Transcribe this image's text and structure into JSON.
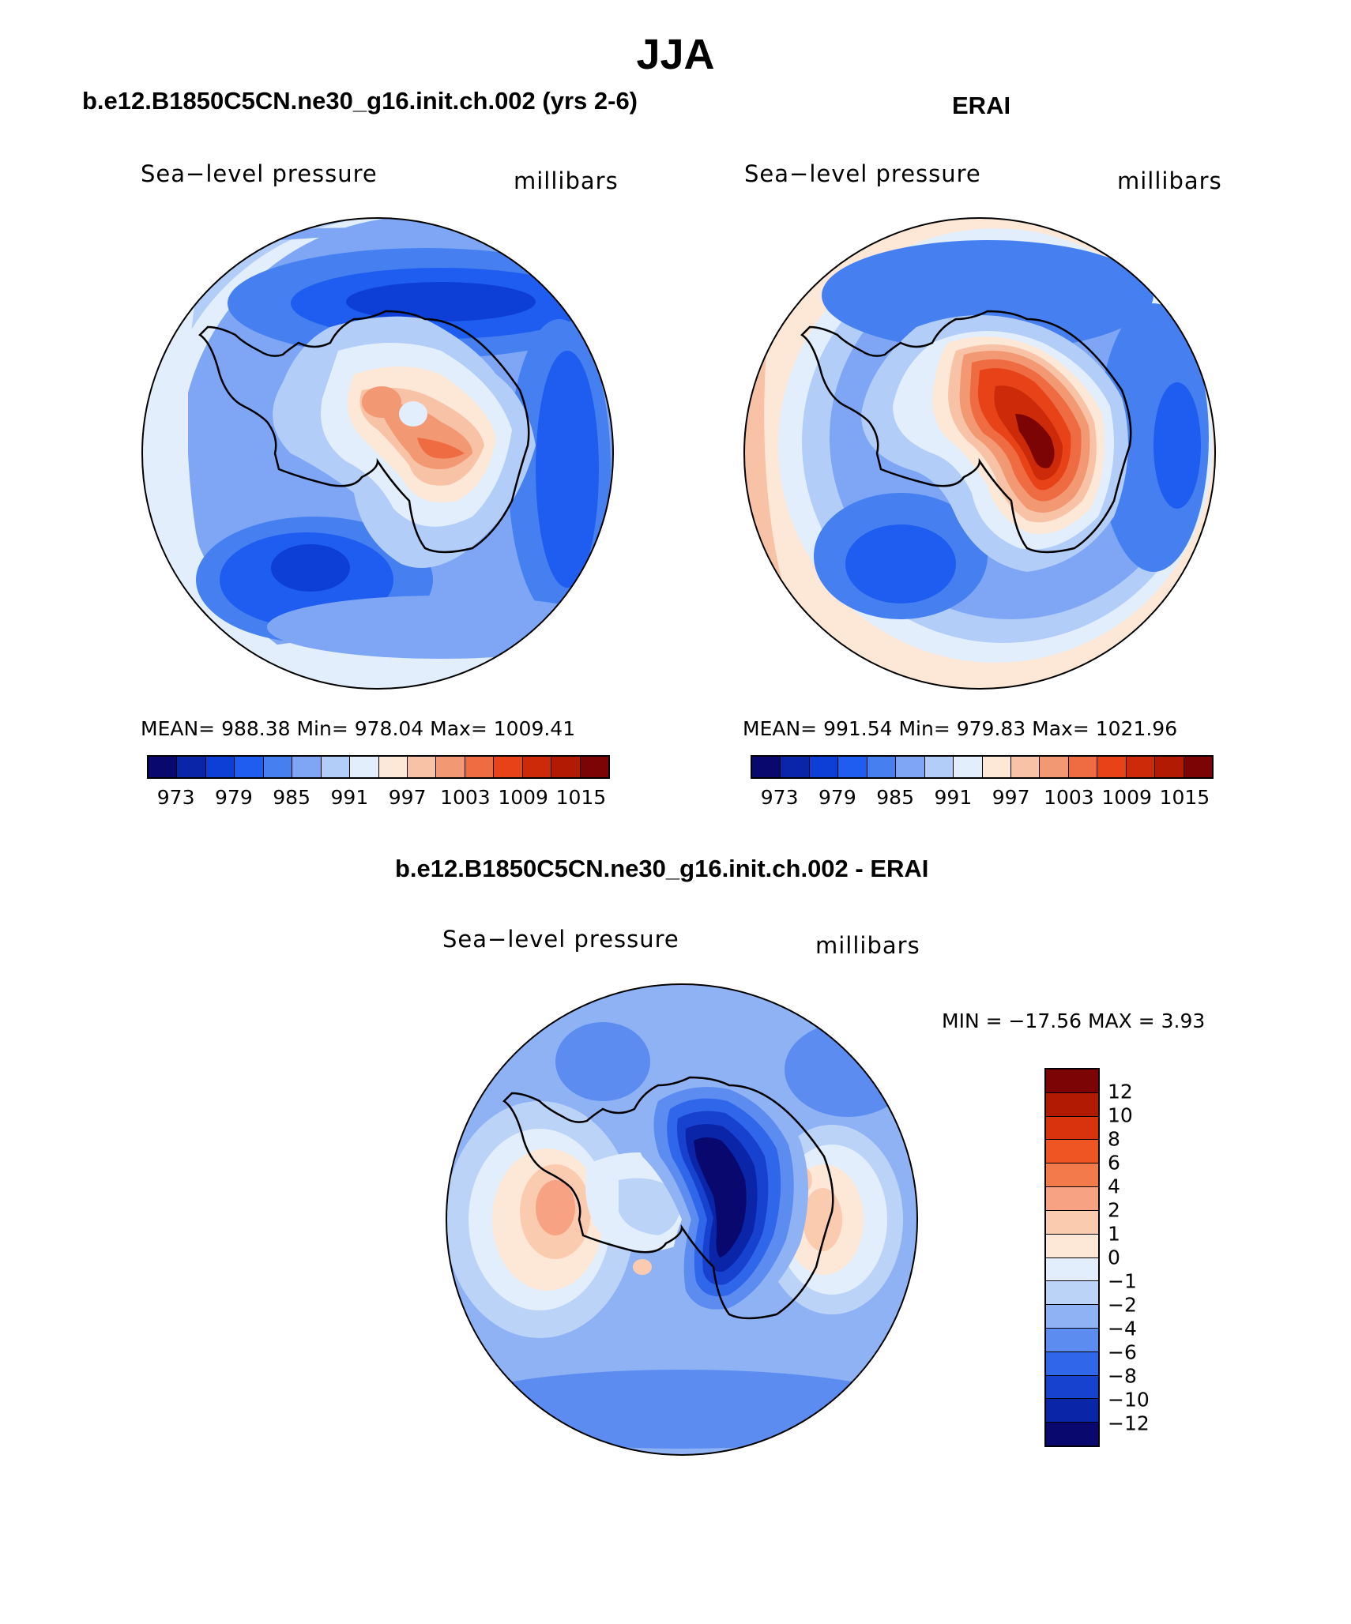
{
  "title": "JJA",
  "panels": [
    {
      "title": "b.e12.B1850C5CN.ne30_g16.init.ch.002 (yrs 2-6)",
      "left_label": "Sea−level pressure",
      "right_label": "millibars",
      "stats": "MEAN= 988.38   Min= 978.04   Max= 1009.41"
    },
    {
      "title": "ERAI",
      "left_label": "Sea−level pressure",
      "right_label": "millibars",
      "stats": "MEAN= 991.54   Min= 979.83   Max= 1021.96"
    },
    {
      "title": "b.e12.B1850C5CN.ne30_g16.init.ch.002 - ERAI",
      "left_label": "Sea−level pressure",
      "right_label": "millibars",
      "stats": "MIN = −17.56  MAX =    3.93"
    }
  ],
  "abs_colorbar": {
    "colors": [
      "#08086e",
      "#0a25a8",
      "#0d3fd6",
      "#1f5df0",
      "#4680f0",
      "#7ea6f5",
      "#b2cdf8",
      "#e2eefb",
      "#fde8d8",
      "#f8c2a6",
      "#f29873",
      "#ef6b42",
      "#e84318",
      "#cc2a08",
      "#b31a04",
      "#7c0404"
    ],
    "tick_labels": [
      "973",
      "979",
      "985",
      "991",
      "997",
      "1003",
      "1009",
      "1015"
    ]
  },
  "diff_colorbar": {
    "colors_top_to_bottom": [
      "#7c0404",
      "#b31a04",
      "#d8330d",
      "#ef5522",
      "#f37a4b",
      "#f6a283",
      "#fbcbb0",
      "#fde8d8",
      "#e2eefb",
      "#bcd3f8",
      "#8fb2f5",
      "#5c8cf0",
      "#2f66ea",
      "#1742cf",
      "#0a25a8",
      "#08086e"
    ],
    "tick_labels": [
      "12",
      "10",
      "8",
      "6",
      "4",
      "2",
      "1",
      "0",
      "−1",
      "−2",
      "−4",
      "−6",
      "−8",
      "−10",
      "−12"
    ]
  }
}
